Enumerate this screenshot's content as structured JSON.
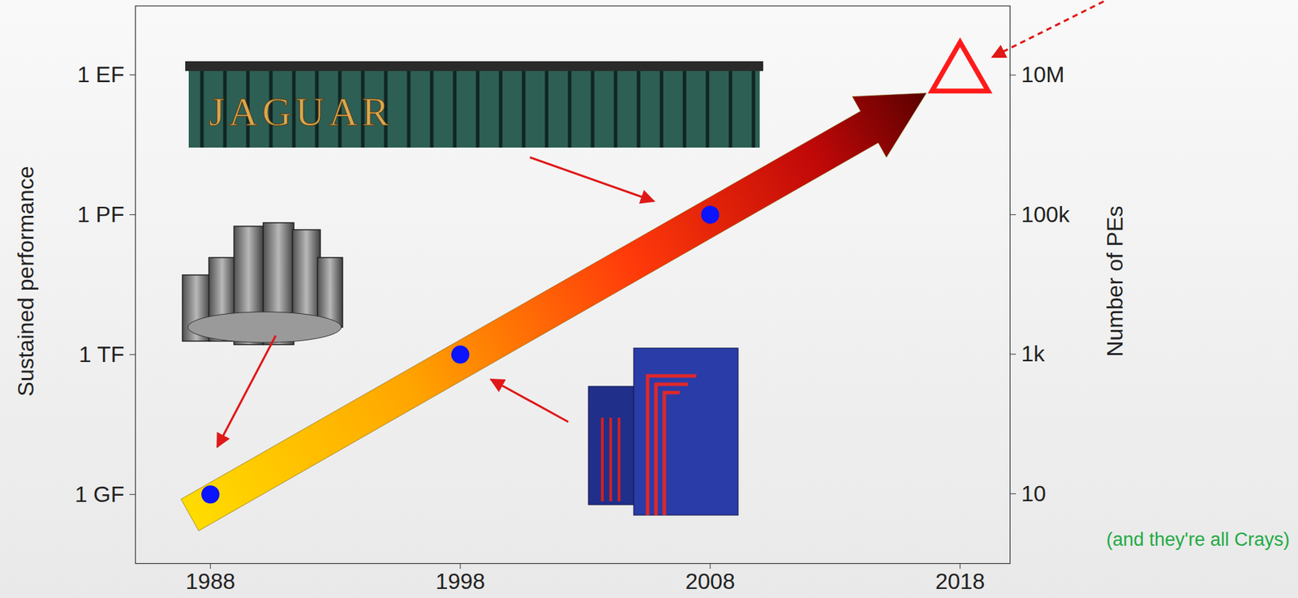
{
  "chart_data": {
    "type": "scatter",
    "x": [
      1988,
      1998,
      2008,
      2018
    ],
    "series": [
      {
        "color": "#0a14ff",
        "marker": "circle",
        "values": [
          1000000000.0,
          1000000000000.0,
          1000000000000000.0,
          null
        ]
      },
      {
        "color": "#ff1a1a",
        "marker": "triangle-open",
        "values": [
          null,
          null,
          null,
          1e+18
        ]
      }
    ],
    "log": "y",
    "grid": false,
    "xlim": [
      1985,
      2020
    ],
    "xticks": [
      1988,
      1998,
      2008,
      2018
    ],
    "ylim": [
      33000000.0,
      3e+19
    ],
    "yticks": [
      {
        "value": 1000000000.0,
        "label": "1 GF"
      },
      {
        "value": 1000000000000.0,
        "label": "1 TF"
      },
      {
        "value": 1000000000000000.0,
        "label": "1 PF"
      },
      {
        "value": 1e+18,
        "label": "1 EF"
      }
    ],
    "ylabel": "Sustained performance",
    "y2lim": [
      1,
      98000000.0
    ],
    "y2ticks": [
      10,
      {
        "value": 1000,
        "label": "1k"
      },
      {
        "value": 100000,
        "label": "100k"
      },
      {
        "value": 10000000,
        "label": "10M"
      }
    ],
    "y2label": "Number of PEs",
    "image_label": "JAGUAR",
    "note": "(and they're all Crays)"
  }
}
